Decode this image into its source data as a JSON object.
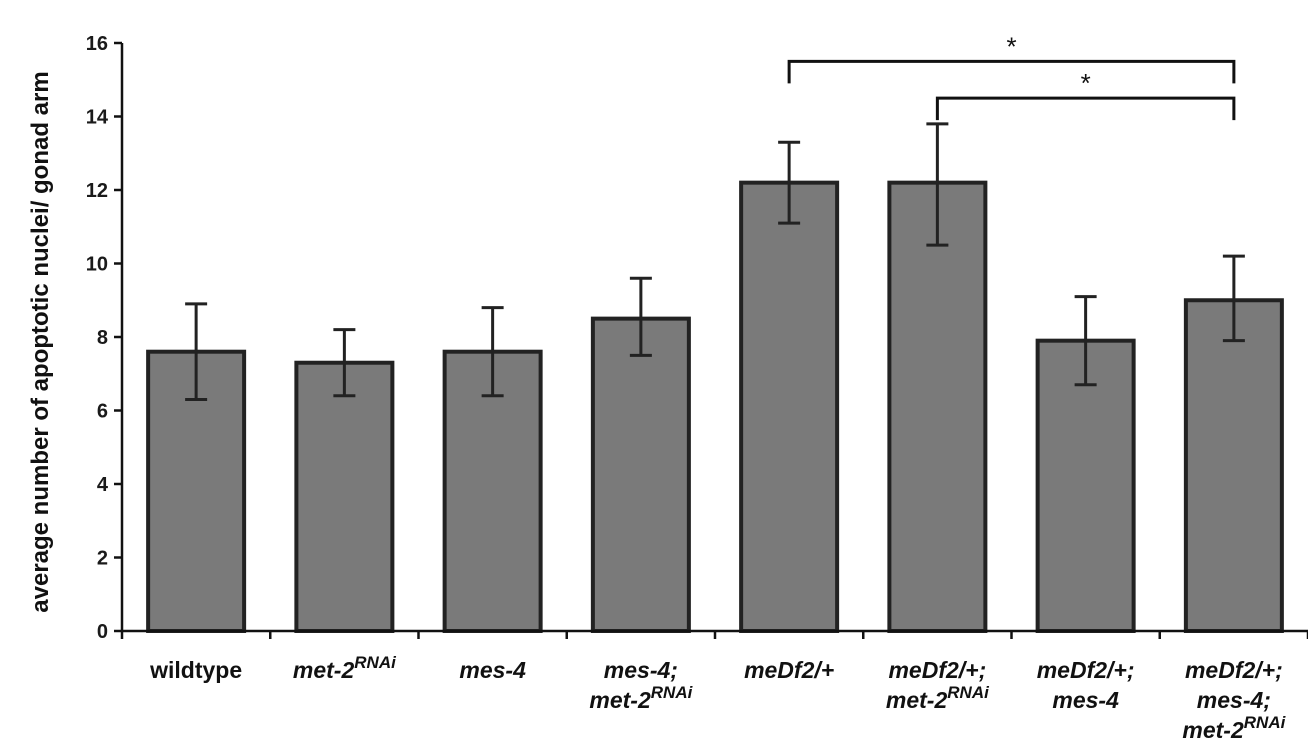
{
  "chart_data": {
    "type": "bar",
    "title": "",
    "xlabel": "",
    "ylabel": "average number of apoptotic nuclei/ gonad arm",
    "ylim": [
      0,
      16
    ],
    "yticks": [
      0,
      2,
      4,
      6,
      8,
      10,
      12,
      14,
      16
    ],
    "grid": false,
    "bar_color": "#7a7a7a",
    "edge_color": "#222222",
    "categories": [
      {
        "lines": [
          [
            {
              "t": "wildtype",
              "i": false
            }
          ]
        ]
      },
      {
        "lines": [
          [
            {
              "t": "met-2",
              "i": true
            },
            {
              "t": "RNAi",
              "i": true,
              "sup": true
            }
          ]
        ]
      },
      {
        "lines": [
          [
            {
              "t": "mes-4",
              "i": true
            }
          ]
        ]
      },
      {
        "lines": [
          [
            {
              "t": "mes-4;",
              "i": true
            }
          ],
          [
            {
              "t": "met-2",
              "i": true
            },
            {
              "t": "RNAi",
              "i": true,
              "sup": true
            }
          ]
        ]
      },
      {
        "lines": [
          [
            {
              "t": "meDf2/+",
              "i": true
            }
          ]
        ]
      },
      {
        "lines": [
          [
            {
              "t": "meDf2/+;",
              "i": true
            }
          ],
          [
            {
              "t": "met-2",
              "i": true
            },
            {
              "t": "RNAi",
              "i": true,
              "sup": true
            }
          ]
        ]
      },
      {
        "lines": [
          [
            {
              "t": "meDf2/+;",
              "i": true
            }
          ],
          [
            {
              "t": "mes-4",
              "i": true
            }
          ]
        ]
      },
      {
        "lines": [
          [
            {
              "t": "meDf2/+;",
              "i": true
            }
          ],
          [
            {
              "t": "mes-4;",
              "i": true
            }
          ],
          [
            {
              "t": "met-2",
              "i": true
            },
            {
              "t": "RNAi",
              "i": true,
              "sup": true
            }
          ]
        ]
      }
    ],
    "values": [
      7.6,
      7.3,
      7.6,
      8.5,
      12.2,
      12.2,
      7.9,
      9.0
    ],
    "error_low": [
      6.3,
      6.4,
      6.4,
      7.5,
      11.1,
      10.5,
      6.7,
      7.9
    ],
    "error_high": [
      8.9,
      8.2,
      8.8,
      9.6,
      13.3,
      13.8,
      9.1,
      10.2
    ],
    "significance": [
      {
        "from": 4,
        "to": 7,
        "y": 15.5,
        "label": "*"
      },
      {
        "from": 5,
        "to": 7,
        "y": 14.5,
        "label": "*"
      }
    ]
  }
}
